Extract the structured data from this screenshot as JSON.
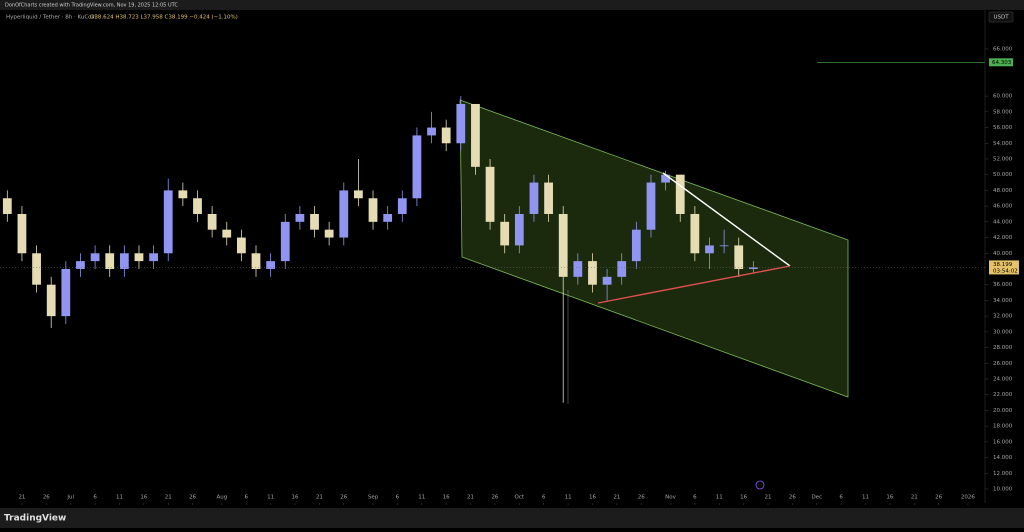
{
  "header": {
    "caption": "DonOfCharts created with TradingView.com, Nov 19, 2025 12:05 UTC",
    "symbol": "Hyperliquid / Tether · 8h · KuCoin",
    "ohlc": "O38.624 H38.723 L37.958 C38.199 −0.424 (−1.10%)",
    "currency": "USDT"
  },
  "footer": {
    "brand": "TradingView"
  },
  "chart_data": {
    "type": "candlestick",
    "up_color": "#8f95f0",
    "down_color": "#e6dcb4",
    "x": [
      -3,
      0,
      3,
      6,
      9,
      12,
      15,
      18,
      21,
      24,
      27,
      30,
      33,
      36,
      39,
      42,
      45,
      48,
      51,
      54,
      57,
      60,
      63,
      66,
      69,
      72,
      75,
      78,
      81,
      84,
      87,
      90,
      93,
      96,
      99,
      102,
      105,
      108,
      111,
      114,
      117,
      120,
      123,
      126,
      129,
      132,
      135,
      138,
      141,
      144,
      147,
      150
    ],
    "open": [
      47,
      45,
      40,
      36,
      32,
      38,
      39,
      40,
      38,
      40,
      39,
      40,
      48,
      47,
      45,
      43,
      42,
      40,
      38,
      39,
      44,
      45,
      43,
      42,
      48,
      47,
      44,
      45,
      47,
      55,
      56,
      54,
      59,
      51,
      44,
      41,
      45,
      49,
      45,
      37,
      39,
      36,
      37,
      39,
      43,
      49,
      50,
      45,
      40,
      41,
      41,
      38
    ],
    "high": [
      48,
      46,
      41,
      37,
      39,
      40,
      41,
      41,
      41,
      41,
      41,
      49.5,
      49,
      48,
      46,
      44,
      43,
      41,
      40,
      45,
      46,
      46,
      44,
      49,
      52,
      48,
      46,
      48,
      56,
      58,
      57,
      60,
      59,
      52,
      45,
      46,
      50,
      50,
      46,
      40,
      40,
      38,
      40,
      44,
      50,
      50.5,
      50,
      46,
      42,
      43,
      42,
      39
    ],
    "low": [
      44,
      39,
      35,
      30.5,
      31,
      37,
      38,
      37,
      37,
      38,
      38,
      39,
      46,
      44,
      42,
      41,
      39,
      37,
      37,
      38,
      43,
      42,
      41,
      41,
      46,
      43,
      43,
      44,
      46,
      54,
      53,
      53,
      50,
      43,
      40,
      40,
      44,
      44,
      21,
      36,
      35,
      34,
      36,
      38,
      42,
      48,
      44,
      39,
      38,
      40,
      37,
      37.5
    ],
    "close": [
      45,
      40,
      36,
      32,
      38,
      39,
      40,
      38,
      40,
      39,
      40,
      48,
      47,
      45,
      43,
      42,
      40,
      38,
      39,
      44,
      45,
      43,
      42,
      48,
      47,
      44,
      45,
      47,
      55,
      56,
      54,
      59,
      51,
      44,
      41,
      45,
      49,
      45,
      37,
      39,
      36,
      37,
      39,
      43,
      49,
      50,
      45,
      40,
      41,
      41,
      38,
      38.199
    ],
    "countdown": "03:54:02",
    "alert_level": 64.303,
    "xlim": [
      -4.5,
      197.5
    ],
    "ylim": [
      8.6,
      70.45
    ],
    "xticks": [
      {
        "value": 0,
        "label": "21"
      },
      {
        "value": 5,
        "label": "26"
      },
      {
        "value": 10,
        "label": "Jul"
      },
      {
        "value": 15,
        "label": "6"
      },
      {
        "value": 20,
        "label": "11"
      },
      {
        "value": 25,
        "label": "16"
      },
      {
        "value": 30,
        "label": "21"
      },
      {
        "value": 35,
        "label": "26"
      },
      {
        "value": 41,
        "label": "Aug"
      },
      {
        "value": 46,
        "label": "6"
      },
      {
        "value": 51,
        "label": "11"
      },
      {
        "value": 56,
        "label": "16"
      },
      {
        "value": 61,
        "label": "21"
      },
      {
        "value": 66,
        "label": "26"
      },
      {
        "value": 72,
        "label": "Sep"
      },
      {
        "value": 77,
        "label": "6"
      },
      {
        "value": 82,
        "label": "11"
      },
      {
        "value": 87,
        "label": "16"
      },
      {
        "value": 92,
        "label": "21"
      },
      {
        "value": 97,
        "label": "26"
      },
      {
        "value": 102,
        "label": "Oct"
      },
      {
        "value": 107,
        "label": "6"
      },
      {
        "value": 112,
        "label": "11"
      },
      {
        "value": 117,
        "label": "16"
      },
      {
        "value": 122,
        "label": "21"
      },
      {
        "value": 127,
        "label": "26"
      },
      {
        "value": 133,
        "label": "Nov"
      },
      {
        "value": 138,
        "label": "6"
      },
      {
        "value": 143,
        "label": "11"
      },
      {
        "value": 148,
        "label": "16"
      },
      {
        "value": 153,
        "label": "21"
      },
      {
        "value": 158,
        "label": "26"
      },
      {
        "value": 163,
        "label": "Dec"
      },
      {
        "value": 168,
        "label": "6"
      },
      {
        "value": 173,
        "label": "11"
      },
      {
        "value": 178,
        "label": "16"
      },
      {
        "value": 183,
        "label": "21"
      },
      {
        "value": 188,
        "label": "26"
      },
      {
        "value": 194,
        "label": "2026"
      }
    ],
    "yticks": [
      {
        "value": 10,
        "label": "10.000"
      },
      {
        "value": 12,
        "label": "12.000"
      },
      {
        "value": 14,
        "label": "14.000"
      },
      {
        "value": 16,
        "label": "16.000"
      },
      {
        "value": 18,
        "label": "18.000"
      },
      {
        "value": 20,
        "label": "20.000"
      },
      {
        "value": 22,
        "label": "22.000"
      },
      {
        "value": 24,
        "label": "24.000"
      },
      {
        "value": 26,
        "label": "26.000"
      },
      {
        "value": 28,
        "label": "28.000"
      },
      {
        "value": 30,
        "label": "30.000"
      },
      {
        "value": 32,
        "label": "32.000"
      },
      {
        "value": 34,
        "label": "34.000"
      },
      {
        "value": 36,
        "label": "36.000"
      },
      {
        "value": 40,
        "label": "40.000"
      },
      {
        "value": 42,
        "label": "42.000"
      },
      {
        "value": 44,
        "label": "44.000"
      },
      {
        "value": 46,
        "label": "46.000"
      },
      {
        "value": 48,
        "label": "48.000"
      },
      {
        "value": 50,
        "label": "50.000"
      },
      {
        "value": 52,
        "label": "52.000"
      },
      {
        "value": 54,
        "label": "54.000"
      },
      {
        "value": 56,
        "label": "56.000"
      },
      {
        "value": 58,
        "label": "58.000"
      },
      {
        "value": 60,
        "label": "60.000"
      },
      {
        "value": 66,
        "label": "66.000"
      }
    ]
  }
}
